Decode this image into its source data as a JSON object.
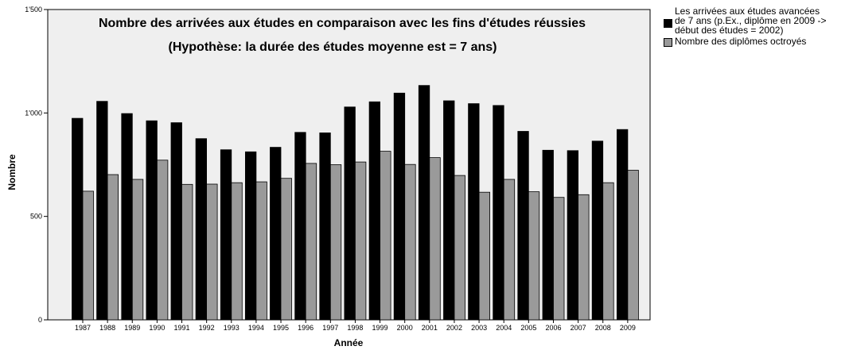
{
  "chart_data": {
    "type": "bar",
    "title": "Nombre des arrivées aux études en comparaison avec les fins d'études réussies",
    "subtitle": "(Hypothèse: la durée des études moyenne est = 7 ans)",
    "xlabel": "Année",
    "ylabel": "Nombre",
    "ylim": [
      0,
      1500
    ],
    "yticks": [
      {
        "value": 0,
        "label": "0"
      },
      {
        "value": 500,
        "label": "500"
      },
      {
        "value": 1000,
        "label": "1'000"
      },
      {
        "value": 1500,
        "label": "1'500"
      }
    ],
    "grid": false,
    "legend_position": "top-right outside",
    "categories": [
      "1987",
      "1988",
      "1989",
      "1990",
      "1991",
      "1992",
      "1993",
      "1994",
      "1995",
      "1996",
      "1997",
      "1998",
      "1999",
      "2000",
      "2001",
      "2002",
      "2003",
      "2004",
      "2005",
      "2006",
      "2007",
      "2008",
      "2009"
    ],
    "series": [
      {
        "name": "Les arrivées aux études avancées de 7 ans (p.Ex., diplôme en 2009 -> début des études = 2002)",
        "color": "#000000",
        "values": [
          974,
          1056,
          997,
          962,
          953,
          876,
          822,
          812,
          834,
          906,
          904,
          1029,
          1054,
          1096,
          1133,
          1059,
          1045,
          1036,
          911,
          820,
          818,
          864,
          920
        ]
      },
      {
        "name": "Nombre des diplômes octroyés",
        "color": "#9a9a9a",
        "values": [
          622,
          702,
          679,
          772,
          655,
          656,
          663,
          667,
          684,
          756,
          750,
          763,
          815,
          751,
          784,
          698,
          617,
          679,
          619,
          592,
          605,
          663,
          723
        ]
      }
    ]
  },
  "legend": {
    "item1": "Les arrivées aux études avancées\nde 7 ans (p.Ex., diplôme en 2009 ->\ndébut des études = 2002)",
    "item2": "Nombre des diplômes octroyés"
  },
  "colors": {
    "plot_background": "#efefef",
    "series1": "#000000",
    "series2": "#9a9a9a"
  }
}
